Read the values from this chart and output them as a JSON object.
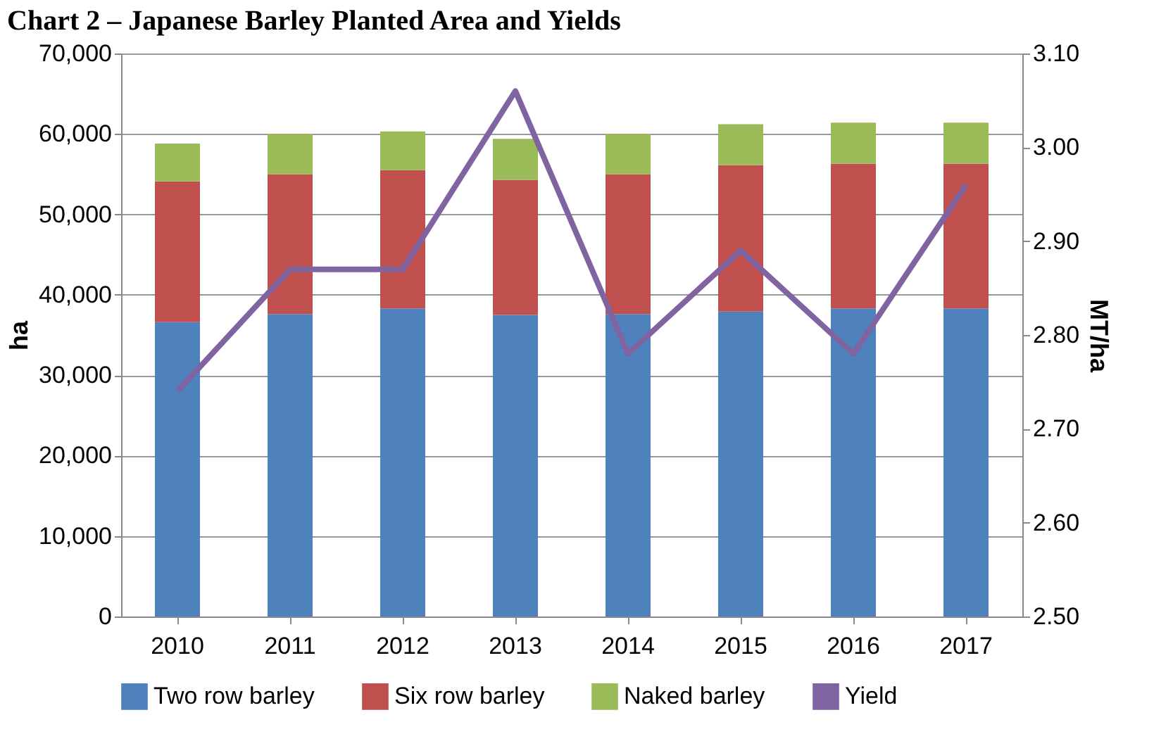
{
  "chart_data": {
    "type": "bar",
    "title": "Chart 2 – Japanese Barley Planted Area and Yields",
    "stacked": true,
    "categories": [
      "2010",
      "2011",
      "2012",
      "2013",
      "2014",
      "2015",
      "2016",
      "2017"
    ],
    "series": [
      {
        "name": "Two row barley",
        "color": "#4f81bd",
        "values": [
          36600,
          37600,
          38300,
          37500,
          37600,
          37900,
          38300,
          38300
        ]
      },
      {
        "name": "Six row barley",
        "color": "#c0504d",
        "values": [
          17500,
          17400,
          17200,
          16800,
          17400,
          18200,
          18000,
          18000
        ]
      },
      {
        "name": "Naked barley",
        "color": "#9bbb59",
        "values": [
          4700,
          5000,
          4800,
          5100,
          5000,
          5100,
          5100,
          5100
        ]
      },
      {
        "name": "Yield",
        "color": "#8064a2",
        "type": "line",
        "axis": "y2",
        "values": [
          2.74,
          2.87,
          2.87,
          3.06,
          2.78,
          2.89,
          2.78,
          2.96
        ]
      }
    ],
    "ylabel": "ha",
    "y2label": "MT/ha",
    "ylim": [
      0,
      70000
    ],
    "yticks": [
      0,
      {
        "value": 10000,
        "label": "10,000"
      },
      {
        "value": 20000,
        "label": "20,000"
      },
      {
        "value": 30000,
        "label": "30,000"
      },
      {
        "value": 40000,
        "label": "40,000"
      },
      {
        "value": 50000,
        "label": "50,000"
      },
      {
        "value": 60000,
        "label": "60,000"
      },
      {
        "value": 70000,
        "label": "70,000"
      }
    ],
    "y2lim": [
      2.5,
      3.1
    ],
    "y2ticks": [
      {
        "value": 2.5,
        "label": "2.50"
      },
      {
        "value": 2.6,
        "label": "2.60"
      },
      {
        "value": 2.7,
        "label": "2.70"
      },
      {
        "value": 2.8,
        "label": "2.80"
      },
      {
        "value": 2.9,
        "label": "2.90"
      },
      {
        "value": 3.0,
        "label": "3.00"
      },
      {
        "value": 3.1,
        "label": "3.10"
      }
    ],
    "grid": "y",
    "legend": "bottom",
    "marker": "none",
    "line_style": "solid"
  }
}
